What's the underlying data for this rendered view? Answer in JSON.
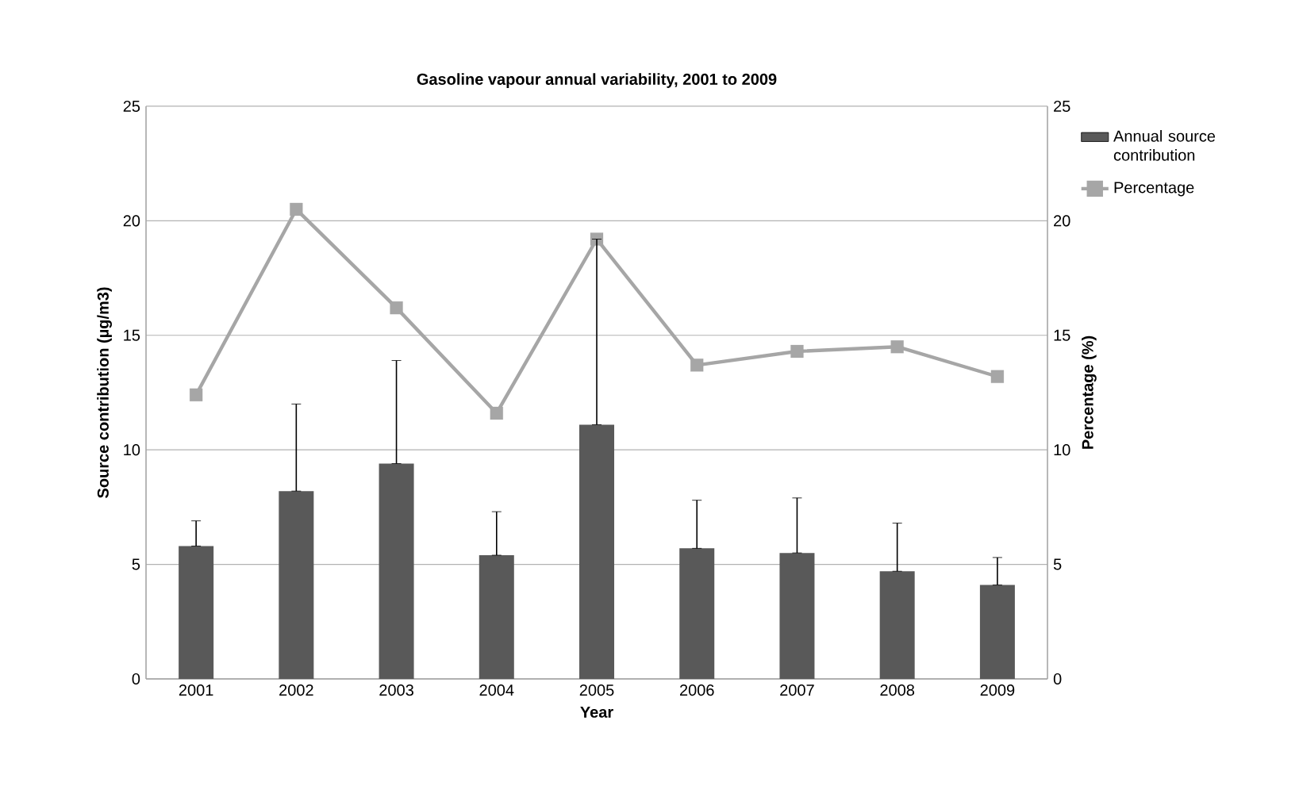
{
  "chart_data": {
    "type": "bar",
    "title": "Gasoline vapour annual variability, 2001 to 2009",
    "xlabel": "Year",
    "ylabel": "Source contribution (µg/m3)",
    "y2label": "Percentage (%)",
    "categories": [
      "2001",
      "2002",
      "2003",
      "2004",
      "2005",
      "2006",
      "2007",
      "2008",
      "2009"
    ],
    "series": [
      {
        "name": "Annual source contribution",
        "type": "bar",
        "color": "#595959",
        "values": [
          5.8,
          8.2,
          9.4,
          5.4,
          11.1,
          5.7,
          5.5,
          4.7,
          4.1
        ],
        "errors": [
          [
            5.8,
            6.9
          ],
          [
            8.2,
            12.0
          ],
          [
            9.4,
            13.9
          ],
          [
            5.4,
            7.3
          ],
          [
            11.1,
            19.2
          ],
          [
            5.7,
            7.8
          ],
          [
            5.5,
            7.9
          ],
          [
            4.7,
            6.8
          ],
          [
            4.1,
            5.3
          ]
        ]
      },
      {
        "name": "Percentage",
        "type": "line",
        "axis": "y2",
        "color": "#a6a6a6",
        "marker": "square",
        "values": [
          12.4,
          20.5,
          16.2,
          11.6,
          19.2,
          13.7,
          14.3,
          14.5,
          13.2
        ]
      }
    ],
    "ylim": [
      0,
      25
    ],
    "yticks": [
      0,
      5,
      10,
      15,
      20,
      25
    ],
    "y2lim": [
      0,
      25
    ],
    "y2ticks": [
      0,
      5,
      10,
      15,
      20,
      25
    ],
    "grid": "y",
    "legend": "right"
  }
}
